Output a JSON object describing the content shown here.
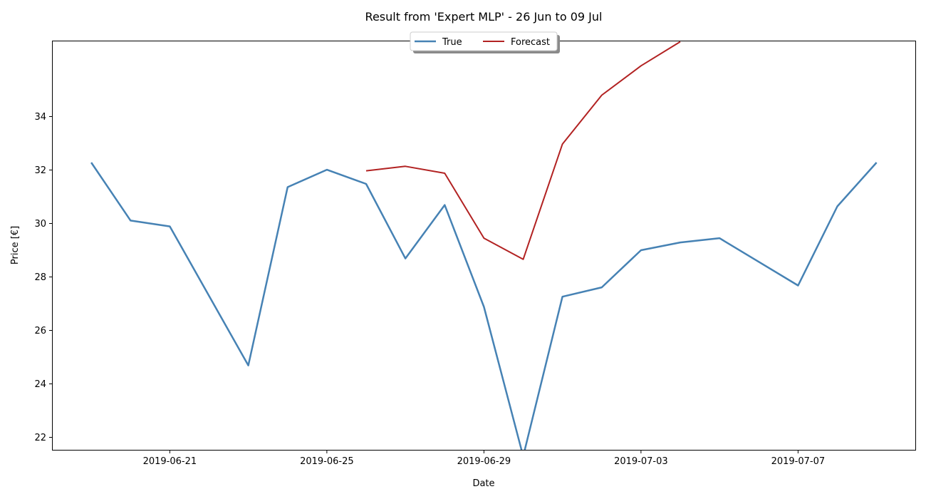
{
  "chart_data": {
    "type": "line",
    "title": "Result from 'Expert MLP' - 26 Jun to 09 Jul",
    "xlabel": "Date",
    "ylabel": "Price [€]",
    "x_tick_labels": [
      "2019-06-21",
      "2019-06-25",
      "2019-06-29",
      "2019-07-03",
      "2019-07-07"
    ],
    "y_tick_labels": [
      "22",
      "24",
      "26",
      "28",
      "30",
      "32",
      "34"
    ],
    "ylim": [
      20.2,
      35.5
    ],
    "xlim": [
      "2019-06-18",
      "2019-07-10"
    ],
    "grid": false,
    "legend_position": "top-center",
    "series": [
      {
        "name": "True",
        "color": "#4682b4",
        "points": [
          {
            "x": "2019-06-19",
            "y": 32.28
          },
          {
            "x": "2019-06-20",
            "y": 30.11
          },
          {
            "x": "2019-06-21",
            "y": 29.89
          },
          {
            "x": "2019-06-23",
            "y": 24.69
          },
          {
            "x": "2019-06-24",
            "y": 31.36
          },
          {
            "x": "2019-06-25",
            "y": 32.01
          },
          {
            "x": "2019-06-26",
            "y": 31.48
          },
          {
            "x": "2019-06-27",
            "y": 28.69
          },
          {
            "x": "2019-06-28",
            "y": 30.69
          },
          {
            "x": "2019-06-29",
            "y": 26.88
          },
          {
            "x": "2019-06-30",
            "y": 21.29
          },
          {
            "x": "2019-07-01",
            "y": 27.26
          },
          {
            "x": "2019-07-02",
            "y": 27.61
          },
          {
            "x": "2019-07-03",
            "y": 29.0
          },
          {
            "x": "2019-07-04",
            "y": 29.29
          },
          {
            "x": "2019-07-05",
            "y": 29.45
          },
          {
            "x": "2019-07-07",
            "y": 27.68
          },
          {
            "x": "2019-07-08",
            "y": 30.64
          },
          {
            "x": "2019-07-09",
            "y": 32.28
          }
        ]
      },
      {
        "name": "Forecast",
        "color": "#b22222",
        "points": [
          {
            "x": "2019-06-26",
            "y": 31.97
          },
          {
            "x": "2019-06-27",
            "y": 32.14
          },
          {
            "x": "2019-06-28",
            "y": 31.88
          },
          {
            "x": "2019-06-29",
            "y": 29.45
          },
          {
            "x": "2019-06-30",
            "y": 28.66
          },
          {
            "x": "2019-07-01",
            "y": 32.97
          },
          {
            "x": "2019-07-02",
            "y": 34.8
          },
          {
            "x": "2019-07-03",
            "y": 35.9
          },
          {
            "x": "2019-07-04",
            "y": 36.8
          }
        ]
      }
    ]
  }
}
